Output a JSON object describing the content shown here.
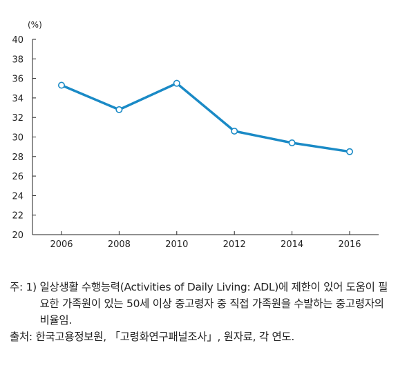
{
  "chart_data": {
    "type": "line",
    "unit_label": "(%)",
    "x": [
      "2006",
      "2008",
      "2010",
      "2012",
      "2014",
      "2016"
    ],
    "series": [
      {
        "values": [
          35.3,
          32.8,
          35.5,
          30.6,
          29.4,
          28.5
        ]
      }
    ],
    "ylim": [
      20,
      40
    ],
    "yticks": [
      20,
      22,
      24,
      26,
      28,
      30,
      32,
      34,
      36,
      38,
      40
    ],
    "grid": false,
    "line_color": "#1a8ac6",
    "marker_fill": "#ffffff"
  },
  "notes": {
    "note_label": "주: 1) ",
    "note_text": "일상생활 수행능력(Activities of Daily Living: ADL)에 제한이 있어 도움이 필요한 가족원이 있는 50세 이상 중고령자 중 직접 가족원을 수발하는 중고령자의 비율임.",
    "source_label": "출처: ",
    "source_text": "한국고용정보원, 「고령화연구패널조사」, 원자료, 각 연도."
  }
}
